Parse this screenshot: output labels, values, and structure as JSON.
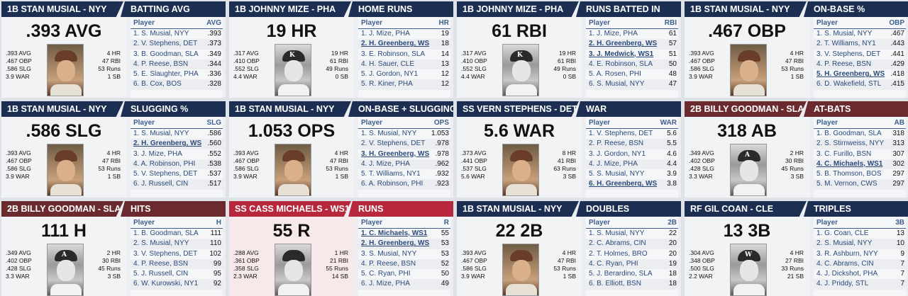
{
  "cards": [
    {
      "theme": "navy",
      "player": "1B STAN MUSIAL - NYY",
      "category": "BATTING AVG",
      "big": "0.393 AVG",
      "photo": "color",
      "logo": "",
      "left": [
        "0.393 AVG",
        "0.467 OBP",
        "0.586 SLG",
        "3.9 WAR"
      ],
      "right": [
        "4 HR",
        "47 RBI",
        "53 Runs",
        "1 SB"
      ],
      "col": "AVG",
      "rows": [
        {
          "n": "1. S. Musial, NYY",
          "v": ".393"
        },
        {
          "n": "2. V. Stephens, DET",
          "v": ".373"
        },
        {
          "n": "3. B. Goodman, SLA",
          "v": ".349"
        },
        {
          "n": "4. P. Reese, BSN",
          "v": ".344"
        },
        {
          "n": "5. E. Slaughter, PHA",
          "v": ".336"
        },
        {
          "n": "6. B. Cox, BOS",
          "v": ".328"
        }
      ]
    },
    {
      "theme": "navy",
      "player": "1B JOHNNY MIZE - PHA",
      "category": "HOME RUNS",
      "big": "19 HR",
      "photo": "bw",
      "logo": "K",
      "left": [
        ".317 AVG",
        ".410 OBP",
        ".552 SLG",
        "4.4 WAR"
      ],
      "right": [
        "19 HR",
        "61 RBI",
        "49 Runs",
        "0 SB"
      ],
      "col": "HR",
      "rows": [
        {
          "n": "1. J. Mize, PHA",
          "v": "19"
        },
        {
          "n": "2. H. Greenberg, WS",
          "v": "18",
          "b": true
        },
        {
          "n": "3. E. Robinson, SLA",
          "v": "14"
        },
        {
          "n": "4. H. Sauer, CLE",
          "v": "13"
        },
        {
          "n": "5. J. Gordon, NY1",
          "v": "12"
        },
        {
          "n": "5. R. Kiner, PHA",
          "v": "12"
        }
      ]
    },
    {
      "theme": "navy",
      "player": "1B JOHNNY MIZE - PHA",
      "category": "RUNS BATTED IN",
      "big": "61 RBI",
      "photo": "bw",
      "logo": "K",
      "left": [
        ".317 AVG",
        ".410 OBP",
        ".552 SLG",
        "4.4 WAR"
      ],
      "right": [
        "19 HR",
        "61 RBI",
        "49 Runs",
        "0 SB"
      ],
      "col": "RBI",
      "rows": [
        {
          "n": "1. J. Mize, PHA",
          "v": "61"
        },
        {
          "n": "2. H. Greenberg, WS",
          "v": "57",
          "b": true
        },
        {
          "n": "3. J. Medwick, WS1",
          "v": "51",
          "b": true
        },
        {
          "n": "4. E. Robinson, SLA",
          "v": "50"
        },
        {
          "n": "5. A. Rosen, PHI",
          "v": "48"
        },
        {
          "n": "6. S. Musial, NYY",
          "v": "47"
        }
      ]
    },
    {
      "theme": "navy",
      "player": "1B STAN MUSIAL - NYY",
      "category": "ON-BASE %",
      "big": ".467 OBP",
      "photo": "color",
      "logo": "",
      "left": [
        ".393 AVG",
        ".467 OBP",
        ".586 SLG",
        "3.9 WAR"
      ],
      "right": [
        "4 HR",
        "47 RBI",
        "53 Runs",
        "1 SB"
      ],
      "col": "OBP",
      "rows": [
        {
          "n": "1. S. Musial, NYY",
          "v": ".467"
        },
        {
          "n": "2. T. Williams, NY1",
          "v": ".443"
        },
        {
          "n": "3. V. Stephens, DET",
          "v": ".441"
        },
        {
          "n": "4. P. Reese, BSN",
          "v": ".429"
        },
        {
          "n": "5. H. Greenberg, WS",
          "v": ".418",
          "b": true
        },
        {
          "n": "6. D. Wakefield, STL",
          "v": ".415"
        }
      ]
    },
    {
      "theme": "navy",
      "player": "1B STAN MUSIAL - NYY",
      "category": "SLUGGING %",
      "big": ".586 SLG",
      "photo": "color",
      "logo": "",
      "left": [
        ".393 AVG",
        ".467 OBP",
        ".586 SLG",
        "3.9 WAR"
      ],
      "right": [
        "4 HR",
        "47 RBI",
        "53 Runs",
        "1 SB"
      ],
      "col": "SLG",
      "rows": [
        {
          "n": "1. S. Musial, NYY",
          "v": ".586"
        },
        {
          "n": "2. H. Greenberg, WS",
          "v": ".560",
          "b": true
        },
        {
          "n": "3. J. Mize, PHA",
          "v": ".552"
        },
        {
          "n": "4. A. Robinson, PHI",
          "v": ".538"
        },
        {
          "n": "5. V. Stephens, DET",
          "v": ".537"
        },
        {
          "n": "6. J. Russell, CIN",
          "v": ".517"
        }
      ]
    },
    {
      "theme": "navy",
      "player": "1B STAN MUSIAL - NYY",
      "category": "ON-BASE + SLUGGING",
      "big": "1.053 OPS",
      "photo": "color",
      "logo": "",
      "left": [
        ".393 AVG",
        ".467 OBP",
        ".586 SLG",
        "3.9 WAR"
      ],
      "right": [
        "4 HR",
        "47 RBI",
        "53 Runs",
        "1 SB"
      ],
      "col": "OPS",
      "rows": [
        {
          "n": "1. S. Musial, NYY",
          "v": "1.053"
        },
        {
          "n": "2. V. Stephens, DET",
          "v": ".978"
        },
        {
          "n": "3. H. Greenberg, WS",
          "v": ".978",
          "b": true
        },
        {
          "n": "4. J. Mize, PHA",
          "v": ".962"
        },
        {
          "n": "5. T. Williams, NY1",
          "v": ".932"
        },
        {
          "n": "6. A. Robinson, PHI",
          "v": ".923"
        }
      ]
    },
    {
      "theme": "navy",
      "player": "SS VERN STEPHENS - DET",
      "category": "WAR",
      "big": "5.6 WAR",
      "photo": "color",
      "logo": "",
      "left": [
        ".373 AVG",
        ".441 OBP",
        ".537 SLG",
        "5.6 WAR"
      ],
      "right": [
        "8 HR",
        "41 RBI",
        "63 Runs",
        "3 SB"
      ],
      "col": "WAR",
      "rows": [
        {
          "n": "1. V. Stephens, DET",
          "v": "5.6"
        },
        {
          "n": "2. P. Reese, BSN",
          "v": "5.5"
        },
        {
          "n": "3. J. Gordon, NY1",
          "v": "4.6"
        },
        {
          "n": "4. J. Mize, PHA",
          "v": "4.4"
        },
        {
          "n": "5. S. Musial, NYY",
          "v": "3.9"
        },
        {
          "n": "6. H. Greenberg, WS",
          "v": "3.8",
          "b": true
        }
      ]
    },
    {
      "theme": "maroon",
      "player": "2B BILLY GOODMAN - SLA",
      "category": "AT-BATS",
      "big": "318 AB",
      "photo": "bw",
      "logo": "A",
      "left": [
        ".349 AVG",
        ".402 OBP",
        ".428 SLG",
        "3.3 WAR"
      ],
      "right": [
        "2 HR",
        "30 RBI",
        "45 Runs",
        "3 SB"
      ],
      "col": "AB",
      "rows": [
        {
          "n": "1. B. Goodman, SLA",
          "v": "318"
        },
        {
          "n": "2. S. Stirnweiss, NYY",
          "v": "313"
        },
        {
          "n": "3. C. Furillo, BSN",
          "v": "307"
        },
        {
          "n": "4. C. Michaels, WS1",
          "v": "302",
          "b": true
        },
        {
          "n": "5. B. Thomson, BOS",
          "v": "297"
        },
        {
          "n": "5. M. Vernon, CWS",
          "v": "297"
        }
      ]
    },
    {
      "theme": "maroon",
      "player": "2B BILLY GOODMAN - SLA",
      "category": "HITS",
      "big": "111 H",
      "photo": "bw",
      "logo": "A",
      "left": [
        ".349 AVG",
        ".402 OBP",
        ".428 SLG",
        "3.3 WAR"
      ],
      "right": [
        "2 HR",
        "30 RBI",
        "45 Runs",
        "3 SB"
      ],
      "col": "H",
      "rows": [
        {
          "n": "1. B. Goodman, SLA",
          "v": "111"
        },
        {
          "n": "2. S. Musial, NYY",
          "v": "110"
        },
        {
          "n": "3. V. Stephens, DET",
          "v": "102"
        },
        {
          "n": "4. P. Reese, BSN",
          "v": "99"
        },
        {
          "n": "5. J. Russell, CIN",
          "v": "95"
        },
        {
          "n": "6. W. Kurowski, NY1",
          "v": "92"
        }
      ]
    },
    {
      "theme": "red",
      "player": "SS CASS MICHAELS - WS1",
      "category": "RUNS",
      "big": "55 R",
      "photo": "bw",
      "logo": "",
      "left": [
        ".288 AVG",
        ".361 OBP",
        ".358 SLG",
        "2.3 WAR"
      ],
      "right": [
        "1 HR",
        "21 RBI",
        "55 Runs",
        "14 SB"
      ],
      "col": "R",
      "rows": [
        {
          "n": "1. C. Michaels, WS1",
          "v": "55",
          "b": true
        },
        {
          "n": "2. H. Greenberg, WS",
          "v": "53",
          "b": true
        },
        {
          "n": "3. S. Musial, NYY",
          "v": "53"
        },
        {
          "n": "4. P. Reese, BSN",
          "v": "52"
        },
        {
          "n": "5. C. Ryan, PHI",
          "v": "50"
        },
        {
          "n": "6. J. Mize, PHA",
          "v": "49"
        }
      ]
    },
    {
      "theme": "navy",
      "player": "1B STAN MUSIAL - NYY",
      "category": "DOUBLES",
      "big": "22 2B",
      "photo": "color",
      "logo": "",
      "left": [
        ".393 AVG",
        ".467 OBP",
        ".586 SLG",
        "3.9 WAR"
      ],
      "right": [
        "4 HR",
        "47 RBI",
        "53 Runs",
        "1 SB"
      ],
      "col": "2B",
      "rows": [
        {
          "n": "1. S. Musial, NYY",
          "v": "22"
        },
        {
          "n": "2. C. Abrams, CIN",
          "v": "20"
        },
        {
          "n": "2. T. Holmes, BRO",
          "v": "20"
        },
        {
          "n": "4. C. Ryan, PHI",
          "v": "19"
        },
        {
          "n": "5. J. Berardino, SLA",
          "v": "18"
        },
        {
          "n": "6. B. Elliott, BSN",
          "v": "18"
        }
      ]
    },
    {
      "theme": "navy",
      "player": "RF GIL COAN - CLE",
      "category": "TRIPLES",
      "big": "13 3B",
      "photo": "bw",
      "logo": "W",
      "left": [
        ".304 AVG",
        ".348 OBP",
        ".500 SLG",
        "2.2 WAR"
      ],
      "right": [
        "4 HR",
        "27 RBI",
        "33 Runs",
        "21 SB"
      ],
      "col": "3B",
      "rows": [
        {
          "n": "1. G. Coan, CLE",
          "v": "13"
        },
        {
          "n": "2. S. Musial, NYY",
          "v": "10"
        },
        {
          "n": "3. R. Ashburn, NYY",
          "v": "9"
        },
        {
          "n": "4. C. Abrams, CIN",
          "v": "7"
        },
        {
          "n": "4. J. Dickshot, PHA",
          "v": "7"
        },
        {
          "n": "4. J. Priddy, STL",
          "v": "7"
        }
      ]
    }
  ]
}
